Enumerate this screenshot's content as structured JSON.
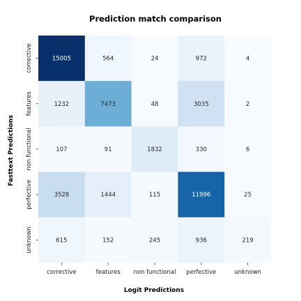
{
  "chart_data": {
    "type": "heatmap",
    "title": "Prediction match comparison",
    "xlabel": "Logit Predictions",
    "ylabel": "Fasttext Predictions",
    "x_categories": [
      "corrective",
      "features",
      "non functional",
      "perfective",
      "unknown"
    ],
    "y_categories": [
      "corrective",
      "features",
      "non functional",
      "perfective",
      "unknown"
    ],
    "values": [
      [
        15005,
        564,
        24,
        972,
        4
      ],
      [
        1232,
        7473,
        48,
        3035,
        2
      ],
      [
        107,
        91,
        1832,
        330,
        6
      ],
      [
        3528,
        1444,
        115,
        11996,
        25
      ],
      [
        615,
        152,
        245,
        936,
        219
      ]
    ],
    "colormap": "Blues",
    "colorbar": false
  }
}
